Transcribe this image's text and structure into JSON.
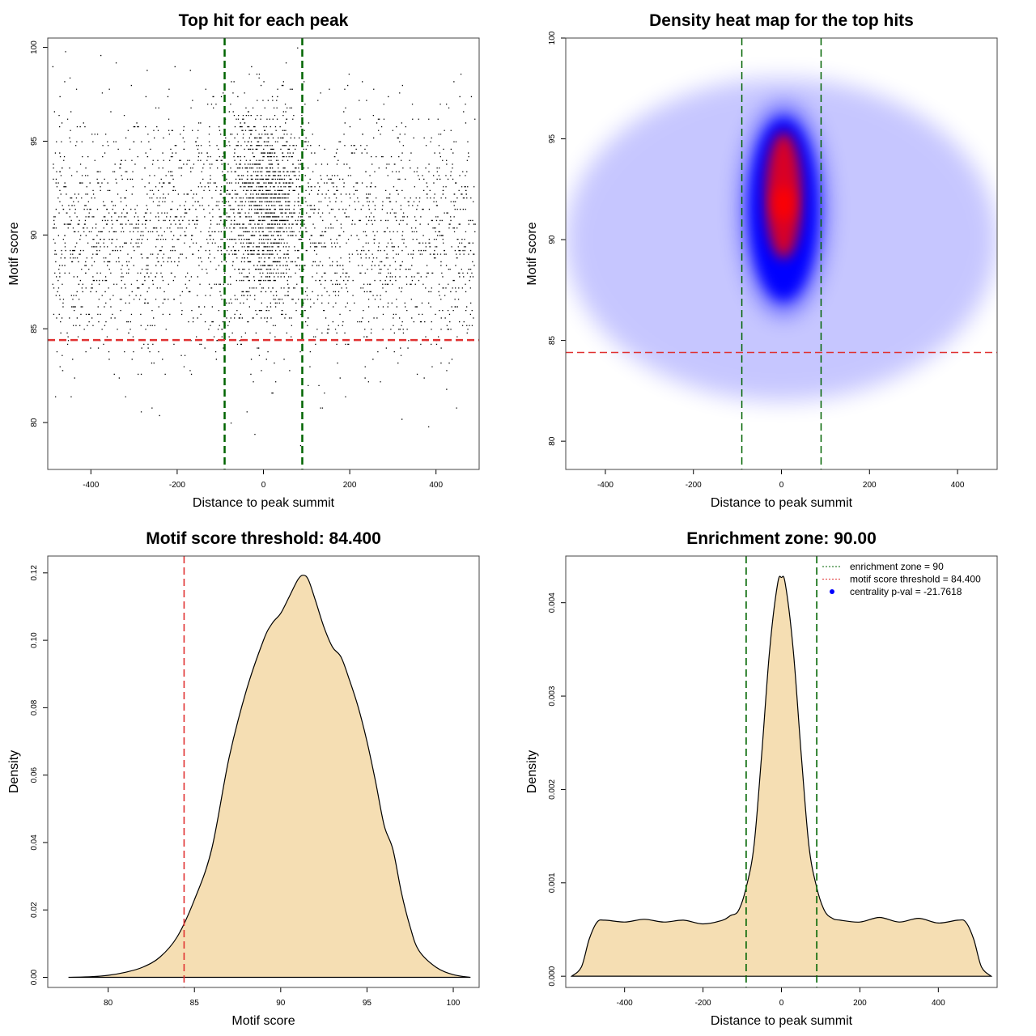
{
  "chart_data": [
    {
      "type": "scatter",
      "title": "Top hit for each peak",
      "xlabel": "Distance to peak summit",
      "ylabel": "Motif score",
      "xlim": [
        -500,
        500
      ],
      "ylim": [
        77.5,
        100.5
      ],
      "xticks": [
        -400,
        -200,
        0,
        200,
        400
      ],
      "yticks": [
        80,
        85,
        90,
        95,
        100
      ],
      "grid": false,
      "point_color": "#000000",
      "reference_lines": [
        {
          "orientation": "vertical",
          "value": -90,
          "color": "#006400",
          "style": "dashed"
        },
        {
          "orientation": "vertical",
          "value": 90,
          "color": "#006400",
          "style": "dashed"
        },
        {
          "orientation": "horizontal",
          "value": 84.4,
          "color": "#e03030",
          "style": "dashed"
        }
      ],
      "distribution": {
        "background": {
          "x_range": [
            -490,
            490
          ],
          "y_mean": 90.0,
          "y_sd": 3.3,
          "share": 0.7
        },
        "central_cluster": {
          "x_mean": 5,
          "x_sd": 45,
          "y_mean": 91.8,
          "y_sd": 2.6,
          "share": 0.3
        },
        "y_range": [
          78,
          100
        ]
      }
    },
    {
      "type": "heatmap",
      "title": "Density heat map for the top hits",
      "xlabel": "Distance to peak summit",
      "ylabel": "Motif score",
      "xlim": [
        -490,
        490
      ],
      "ylim": [
        78.6,
        100
      ],
      "xticks": [
        -400,
        -200,
        0,
        200,
        400
      ],
      "yticks": [
        80,
        85,
        90,
        95,
        100
      ],
      "grid": false,
      "color_scale": [
        "#ffffff",
        "#0000ff",
        "#ff0000"
      ],
      "density_peak": {
        "x": 5,
        "y": 92.2
      },
      "reference_lines": [
        {
          "orientation": "vertical",
          "value": -90,
          "color": "#006400",
          "style": "dashed"
        },
        {
          "orientation": "vertical",
          "value": 90,
          "color": "#006400",
          "style": "dashed"
        },
        {
          "orientation": "horizontal",
          "value": 84.4,
          "color": "#e03030",
          "style": "dashed"
        }
      ]
    },
    {
      "type": "area",
      "title": "Motif score threshold: 84.400",
      "xlabel": "Motif score",
      "ylabel": "Density",
      "xlim": [
        76.5,
        101.5
      ],
      "ylim": [
        -0.003,
        0.125
      ],
      "xticks": [
        80,
        85,
        90,
        95,
        100
      ],
      "yticks": [
        "0.00",
        "0.02",
        "0.04",
        "0.06",
        "0.08",
        "0.10",
        "0.12"
      ],
      "fill_color": "#f5deb3",
      "line_color": "#000000",
      "x": [
        77.7,
        79,
        80,
        81,
        82,
        83,
        84,
        85,
        86,
        87,
        88,
        89,
        89.5,
        90,
        90.5,
        91,
        91.3,
        91.6,
        92,
        92.5,
        93,
        93.5,
        94,
        94.5,
        95,
        95.5,
        96,
        96.5,
        97,
        97.5,
        98,
        99,
        100,
        101
      ],
      "values": [
        0,
        0.0002,
        0.0006,
        0.0015,
        0.003,
        0.006,
        0.012,
        0.023,
        0.038,
        0.065,
        0.085,
        0.1,
        0.105,
        0.108,
        0.113,
        0.118,
        0.1193,
        0.118,
        0.112,
        0.104,
        0.098,
        0.095,
        0.088,
        0.08,
        0.07,
        0.058,
        0.045,
        0.038,
        0.025,
        0.015,
        0.008,
        0.003,
        0.0008,
        0
      ],
      "reference_lines": [
        {
          "orientation": "vertical",
          "value": 84.4,
          "color": "#e03030",
          "style": "dashed"
        }
      ]
    },
    {
      "type": "area",
      "title": "Enrichment zone: 90.00",
      "xlabel": "Distance to peak summit",
      "ylabel": "Density",
      "xlim": [
        -550,
        550
      ],
      "ylim": [
        -0.00012,
        0.0045
      ],
      "xticks": [
        -400,
        -200,
        0,
        200,
        400
      ],
      "yticks": [
        "0.000",
        "0.001",
        "0.002",
        "0.003",
        "0.004"
      ],
      "fill_color": "#f5deb3",
      "line_color": "#000000",
      "x": [
        -535,
        -510,
        -490,
        -470,
        -450,
        -400,
        -350,
        -300,
        -250,
        -200,
        -150,
        -130,
        -110,
        -90,
        -70,
        -50,
        -30,
        -10,
        0,
        10,
        30,
        50,
        70,
        90,
        110,
        130,
        150,
        200,
        250,
        300,
        350,
        400,
        450,
        470,
        490,
        510,
        535
      ],
      "values": [
        0,
        0.0001,
        0.0004,
        0.00058,
        0.0006,
        0.00058,
        0.00061,
        0.00058,
        0.0006,
        0.00056,
        0.0006,
        0.00065,
        0.0007,
        0.00095,
        0.0014,
        0.0024,
        0.0035,
        0.0042,
        0.00427,
        0.0042,
        0.0035,
        0.0024,
        0.0014,
        0.00095,
        0.0007,
        0.00062,
        0.0006,
        0.00058,
        0.00063,
        0.00058,
        0.00062,
        0.00057,
        0.0006,
        0.00058,
        0.0004,
        0.0001,
        0
      ],
      "reference_lines": [
        {
          "orientation": "vertical",
          "value": -90,
          "color": "#006400",
          "style": "dashed"
        },
        {
          "orientation": "vertical",
          "value": 90,
          "color": "#006400",
          "style": "dashed"
        }
      ],
      "legend": {
        "placement": "top-right",
        "entries": [
          {
            "label": "enrichment zone = 90",
            "color": "#006400",
            "marker": "dotted-line"
          },
          {
            "label": "motif score threshold = 84.400",
            "color": "#e03030",
            "marker": "dotted-line"
          },
          {
            "label": "centrality p-val = -21.7618",
            "color": "#0000ff",
            "marker": "point"
          }
        ]
      }
    }
  ]
}
